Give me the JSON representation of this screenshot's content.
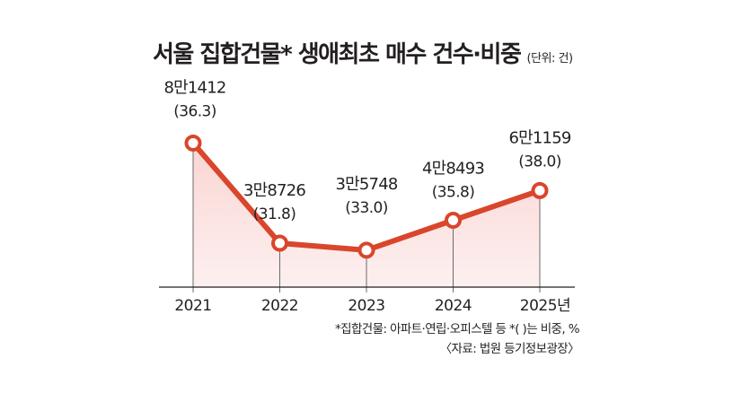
{
  "title": "서울 집합건물* 생애최초 매수 건수·비중",
  "unit_note": "(단위: 건)",
  "footnote": "*집합건물: 아파트·연립·오피스텔 등 *( )는 비중, %",
  "source": "〈자료: 법원 등기정보광장〉",
  "colors": {
    "line": "#d9462b",
    "fill": "#f9d5d2",
    "grid": "#231f20"
  },
  "chart_data": {
    "type": "area",
    "categories": [
      "2021",
      "2022",
      "2023",
      "2024",
      "2025년"
    ],
    "series": [
      {
        "values": [
          81412,
          38726,
          35748,
          48493,
          61159
        ],
        "value_labels": [
          "8만1412",
          "3만8726",
          "3만5748",
          "4만8493",
          "6만1159"
        ],
        "share_percent": [
          36.3,
          31.8,
          33.0,
          35.8,
          38.0
        ],
        "share_labels": [
          "(36.3)",
          "(31.8)",
          "(33.0)",
          "(35.8)",
          "(38.0)"
        ]
      }
    ],
    "xlabel": "",
    "ylabel": "",
    "ylim": [
      20000,
      90000
    ],
    "grid": false,
    "legend": "none"
  }
}
